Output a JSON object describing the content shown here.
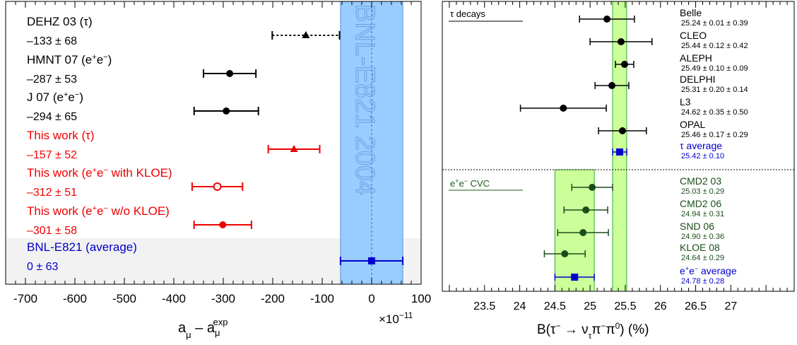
{
  "chart_data": [
    {
      "type": "scatter",
      "xlabel": {
        "main": "a",
        "sub1": "μ",
        "dash": "–",
        "main2": "a",
        "sub2": "μ",
        "sup2": "exp"
      },
      "xlim": [
        -740,
        100
      ],
      "xticks": [
        -700,
        -600,
        -500,
        -400,
        -300,
        -200,
        -100,
        0,
        100
      ],
      "exponent": "×10",
      "exponent_power": "−11",
      "band": {
        "label": "BNL-E821 2004",
        "center": 0,
        "halfwidth": 63,
        "color": "#99ccff"
      },
      "points": [
        {
          "name": "DEHZ 03 (τ)",
          "name_base": "DEHZ 03 (τ)",
          "value_text": "–133 ± 68",
          "x": -133,
          "err": 68,
          "color": "#000000",
          "marker": "triangle",
          "dashed": true
        },
        {
          "name_base": "HMNT 07 (e",
          "sup1": "+",
          "mid": "e",
          "sup2": "−",
          "tail": ")",
          "value_text": "–287 ± 53",
          "x": -287,
          "err": 53,
          "color": "#000000",
          "marker": "circle"
        },
        {
          "name_base": "J 07 (e",
          "sup1": "+",
          "mid": "e",
          "sup2": "−",
          "tail": ")",
          "value_text": "–294 ± 65",
          "x": -294,
          "err": 65,
          "color": "#000000",
          "marker": "circle"
        },
        {
          "name_base": "This work (τ)",
          "value_text": "–157 ± 52",
          "x": -157,
          "err": 52,
          "color": "#ee0000",
          "marker": "triangle"
        },
        {
          "name_base": "This work (e",
          "sup1": "+",
          "mid": "e",
          "sup2": "−",
          "tail": " with KLOE)",
          "value_text": "–312 ± 51",
          "x": -312,
          "err": 51,
          "color": "#ee0000",
          "marker": "open-circle"
        },
        {
          "name_base": "This work (e",
          "sup1": "+",
          "mid": "e",
          "sup2": "−",
          "tail": " w/o KLOE)",
          "value_text": "–301 ± 58",
          "x": -301,
          "err": 58,
          "color": "#ee0000",
          "marker": "circle"
        },
        {
          "name_base": "BNL-E821 (average)",
          "value_text": "0 ± 63",
          "x": 0,
          "err": 63,
          "color": "#0000cc",
          "marker": "square",
          "highlight": true
        }
      ]
    },
    {
      "type": "scatter",
      "xlabel": {
        "pre": "B(τ",
        "sup1": "−",
        "arrow": " → ν",
        "sub": "τ",
        "pi1": "π",
        "sup2": "−",
        "pi2": "π",
        "sup3": "0",
        "post": ")",
        "unit": "(%)"
      },
      "xlim": [
        22.9,
        27.9
      ],
      "xticks": [
        23.5,
        24,
        24.5,
        25,
        25.5,
        26,
        26.5,
        27
      ],
      "xtick_labels": [
        "23.5",
        "24",
        "24.5",
        "25",
        "25.5",
        "26",
        "26.5",
        "27"
      ],
      "groups": [
        {
          "label": "τ decays",
          "color": "#000000",
          "band": {
            "center": 25.42,
            "halfwidth": 0.1,
            "color": "#ccff99"
          },
          "points": [
            {
              "name": "Belle",
              "value_text": "25.24 ± 0.01 ± 0.39",
              "x": 25.24,
              "err": 0.39,
              "color": "#000000"
            },
            {
              "name": "CLEO",
              "value_text": "25.44 ± 0.12 ± 0.42",
              "x": 25.44,
              "err": 0.44,
              "color": "#000000"
            },
            {
              "name": "ALEPH",
              "value_text": "25.49 ± 0.10 ± 0.09",
              "x": 25.49,
              "err": 0.13,
              "color": "#000000"
            },
            {
              "name": "DELPHI",
              "value_text": "25.31 ± 0.20 ± 0.14",
              "x": 25.31,
              "err": 0.24,
              "color": "#000000"
            },
            {
              "name": "L3",
              "value_text": "24.62 ± 0.35 ± 0.50",
              "x": 24.62,
              "err": 0.61,
              "color": "#000000"
            },
            {
              "name": "OPAL",
              "value_text": "25.46 ± 0.17 ± 0.29",
              "x": 25.46,
              "err": 0.34,
              "color": "#000000"
            },
            {
              "name": "τ average",
              "value_text": "25.42 ± 0.10",
              "x": 25.42,
              "err": 0.1,
              "color": "#0000cc",
              "marker": "square"
            }
          ]
        },
        {
          "label_base": "e",
          "label_sup1": "+",
          "label_mid": "e",
          "label_sup2": "−",
          "label_tail": " CVC",
          "color": "#1a5c1a",
          "band": {
            "center": 24.78,
            "halfwidth": 0.28,
            "color": "#ccff99"
          },
          "points": [
            {
              "name": "CMD2 03",
              "value_text": "25.03 ± 0.29",
              "x": 25.03,
              "err": 0.29,
              "color": "#1a4d1a"
            },
            {
              "name": "CMD2 06",
              "value_text": "24.94 ± 0.31",
              "x": 24.94,
              "err": 0.31,
              "color": "#1a4d1a"
            },
            {
              "name": "SND 06",
              "value_text": "24.90 ± 0.36",
              "x": 24.9,
              "err": 0.36,
              "color": "#1a4d1a"
            },
            {
              "name": "KLOE 08",
              "value_text": "24.64 ± 0.29",
              "x": 24.64,
              "err": 0.29,
              "color": "#1a4d1a"
            },
            {
              "name": "average",
              "name_prefix": "e",
              "name_sup1": "+",
              "name_mid": "e",
              "name_sup2": "−",
              "value_text": "24.78 ± 0.28",
              "x": 24.78,
              "err": 0.28,
              "color": "#0000cc",
              "marker": "square"
            }
          ]
        }
      ]
    }
  ]
}
